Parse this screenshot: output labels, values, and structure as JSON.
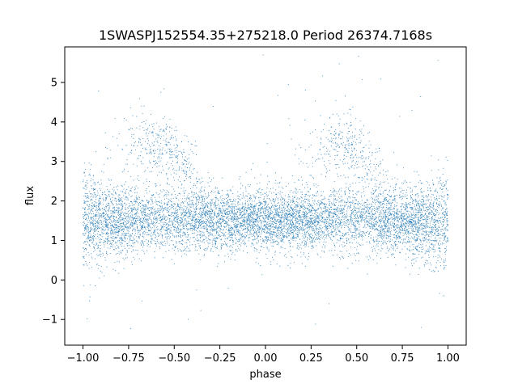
{
  "chart_data": {
    "type": "scatter",
    "title": "1SWASPJ152554.35+275218.0 Period 26374.7168s",
    "xlabel": "phase",
    "ylabel": "flux",
    "xlim": [
      -1.1,
      1.1
    ],
    "ylim": [
      -1.65,
      5.9
    ],
    "xticks": [
      -1.0,
      -0.75,
      -0.5,
      -0.25,
      0.0,
      0.25,
      0.5,
      0.75,
      1.0
    ],
    "xtick_labels": [
      "−1.00",
      "−0.75",
      "−0.50",
      "−0.25",
      "0.00",
      "0.25",
      "0.50",
      "0.75",
      "1.00"
    ],
    "yticks": [
      -1,
      0,
      1,
      2,
      3,
      4,
      5
    ],
    "ytick_labels": [
      "−1",
      "0",
      "1",
      "2",
      "3",
      "4",
      "5"
    ],
    "grid": false,
    "marker_color": "#1f77b4",
    "marker": "small dots",
    "series": [
      {
        "phase_range": [
          -1.0,
          1.0
        ],
        "description_points": [
          {
            "phase": -1.0,
            "baseline_flux": 1.6,
            "spread": [
              0.6,
              3.1
            ]
          },
          {
            "phase": -0.75,
            "baseline_flux": 1.55,
            "spread": [
              0.8,
              2.7
            ]
          },
          {
            "phase": -0.55,
            "baseline_flux": 1.5,
            "upper_branch_flux": 3.4,
            "spread": [
              0.5,
              4.6
            ]
          },
          {
            "phase": -0.25,
            "baseline_flux": 1.45,
            "upper_branch_flux": 2.1,
            "spread": [
              0.7,
              3.2
            ]
          },
          {
            "phase": 0.0,
            "baseline_flux": 1.5,
            "spread": [
              0.2,
              2.9
            ]
          },
          {
            "phase": 0.25,
            "baseline_flux": 1.45,
            "spread": [
              0.7,
              2.8
            ]
          },
          {
            "phase": 0.45,
            "baseline_flux": 1.5,
            "upper_branch_flux": 3.4,
            "spread": [
              0.5,
              4.6
            ]
          },
          {
            "phase": 0.75,
            "baseline_flux": 1.5,
            "upper_branch_flux": 2.1,
            "spread": [
              0.7,
              3.2
            ]
          },
          {
            "phase": 1.0,
            "baseline_flux": 1.6,
            "spread": [
              0.6,
              3.1
            ]
          }
        ]
      }
    ]
  }
}
